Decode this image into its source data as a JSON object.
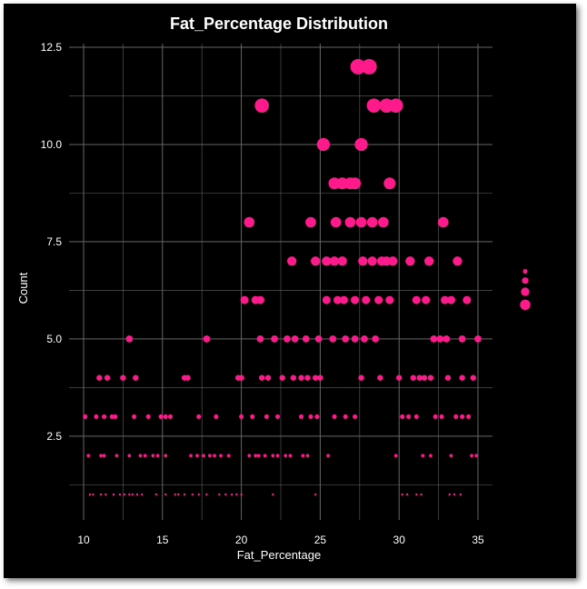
{
  "chart_data": {
    "type": "scatter",
    "title": "Fat_Percentage Distribution",
    "xlabel": "Fat_Percentage",
    "ylabel": "Count",
    "xlim": [
      10,
      35
    ],
    "ylim": [
      1.0,
      12.5
    ],
    "xticks": [
      10,
      15,
      20,
      25,
      30,
      35
    ],
    "xtick_labels": [
      "10",
      "15",
      "20",
      "25",
      "30",
      "35"
    ],
    "yticks": [
      2.5,
      5.0,
      7.5,
      10.0,
      12.5
    ],
    "ytick_labels": [
      "2.5",
      "5.0",
      "7.5",
      "10.0",
      "12.5"
    ],
    "grid": true,
    "legend": "size legend right, unlabeled",
    "colors": {
      "background": "#000000",
      "marker": "#ff1a8c",
      "grid": "#666666",
      "text": "#ffffff"
    },
    "points": [
      {
        "x": 11.0,
        "y": 4
      },
      {
        "x": 11.5,
        "y": 4
      },
      {
        "x": 12.5,
        "y": 4
      },
      {
        "x": 13.3,
        "y": 4
      },
      {
        "x": 16.4,
        "y": 4
      },
      {
        "x": 16.6,
        "y": 4
      },
      {
        "x": 19.8,
        "y": 4
      },
      {
        "x": 20.0,
        "y": 4
      },
      {
        "x": 21.3,
        "y": 4
      },
      {
        "x": 21.7,
        "y": 4
      },
      {
        "x": 22.6,
        "y": 4
      },
      {
        "x": 23.3,
        "y": 4
      },
      {
        "x": 23.8,
        "y": 4
      },
      {
        "x": 24.2,
        "y": 4
      },
      {
        "x": 24.7,
        "y": 4
      },
      {
        "x": 25.0,
        "y": 4
      },
      {
        "x": 27.6,
        "y": 4
      },
      {
        "x": 28.8,
        "y": 4
      },
      {
        "x": 30.0,
        "y": 4
      },
      {
        "x": 30.9,
        "y": 4
      },
      {
        "x": 31.3,
        "y": 4
      },
      {
        "x": 31.6,
        "y": 4
      },
      {
        "x": 32.0,
        "y": 4
      },
      {
        "x": 33.1,
        "y": 4
      },
      {
        "x": 34.0,
        "y": 4
      },
      {
        "x": 34.7,
        "y": 4
      },
      {
        "x": 12.9,
        "y": 5
      },
      {
        "x": 17.8,
        "y": 5
      },
      {
        "x": 21.2,
        "y": 5
      },
      {
        "x": 22.1,
        "y": 5
      },
      {
        "x": 22.9,
        "y": 5
      },
      {
        "x": 23.4,
        "y": 5
      },
      {
        "x": 24.1,
        "y": 5
      },
      {
        "x": 24.9,
        "y": 5
      },
      {
        "x": 25.8,
        "y": 5
      },
      {
        "x": 26.6,
        "y": 5
      },
      {
        "x": 27.2,
        "y": 5
      },
      {
        "x": 27.8,
        "y": 5
      },
      {
        "x": 28.5,
        "y": 5
      },
      {
        "x": 32.2,
        "y": 5
      },
      {
        "x": 32.6,
        "y": 5
      },
      {
        "x": 33.0,
        "y": 5
      },
      {
        "x": 34.0,
        "y": 5
      },
      {
        "x": 35.0,
        "y": 5
      },
      {
        "x": 20.2,
        "y": 6
      },
      {
        "x": 20.9,
        "y": 6
      },
      {
        "x": 21.2,
        "y": 6
      },
      {
        "x": 25.4,
        "y": 6
      },
      {
        "x": 26.1,
        "y": 6
      },
      {
        "x": 26.5,
        "y": 6
      },
      {
        "x": 27.2,
        "y": 6
      },
      {
        "x": 27.9,
        "y": 6
      },
      {
        "x": 28.7,
        "y": 6
      },
      {
        "x": 29.4,
        "y": 6
      },
      {
        "x": 31.1,
        "y": 6
      },
      {
        "x": 31.7,
        "y": 6
      },
      {
        "x": 32.9,
        "y": 6
      },
      {
        "x": 33.3,
        "y": 6
      },
      {
        "x": 34.3,
        "y": 6
      },
      {
        "x": 23.2,
        "y": 7
      },
      {
        "x": 24.7,
        "y": 7
      },
      {
        "x": 25.4,
        "y": 7
      },
      {
        "x": 25.9,
        "y": 7
      },
      {
        "x": 26.4,
        "y": 7
      },
      {
        "x": 27.7,
        "y": 7
      },
      {
        "x": 28.3,
        "y": 7
      },
      {
        "x": 28.9,
        "y": 7
      },
      {
        "x": 29.2,
        "y": 7
      },
      {
        "x": 29.6,
        "y": 7
      },
      {
        "x": 30.7,
        "y": 7
      },
      {
        "x": 31.9,
        "y": 7
      },
      {
        "x": 33.7,
        "y": 7
      },
      {
        "x": 20.5,
        "y": 8
      },
      {
        "x": 24.4,
        "y": 8
      },
      {
        "x": 26.0,
        "y": 8
      },
      {
        "x": 26.9,
        "y": 8
      },
      {
        "x": 27.6,
        "y": 8
      },
      {
        "x": 28.3,
        "y": 8
      },
      {
        "x": 29.0,
        "y": 8
      },
      {
        "x": 32.8,
        "y": 8
      },
      {
        "x": 25.9,
        "y": 9
      },
      {
        "x": 26.4,
        "y": 9
      },
      {
        "x": 26.9,
        "y": 9
      },
      {
        "x": 27.2,
        "y": 9
      },
      {
        "x": 29.4,
        "y": 9
      },
      {
        "x": 25.2,
        "y": 10
      },
      {
        "x": 27.6,
        "y": 10
      },
      {
        "x": 21.3,
        "y": 11
      },
      {
        "x": 28.4,
        "y": 11
      },
      {
        "x": 29.2,
        "y": 11
      },
      {
        "x": 29.8,
        "y": 11
      },
      {
        "x": 27.4,
        "y": 12
      },
      {
        "x": 28.1,
        "y": 12
      },
      {
        "x": 10.1,
        "y": 3
      },
      {
        "x": 10.8,
        "y": 3
      },
      {
        "x": 11.3,
        "y": 3
      },
      {
        "x": 11.8,
        "y": 3
      },
      {
        "x": 12.0,
        "y": 3
      },
      {
        "x": 13.2,
        "y": 3
      },
      {
        "x": 14.1,
        "y": 3
      },
      {
        "x": 14.9,
        "y": 3
      },
      {
        "x": 15.2,
        "y": 3
      },
      {
        "x": 15.5,
        "y": 3
      },
      {
        "x": 17.3,
        "y": 3
      },
      {
        "x": 18.4,
        "y": 3
      },
      {
        "x": 20.0,
        "y": 3
      },
      {
        "x": 20.7,
        "y": 3
      },
      {
        "x": 21.6,
        "y": 3
      },
      {
        "x": 22.3,
        "y": 3
      },
      {
        "x": 23.8,
        "y": 3
      },
      {
        "x": 24.4,
        "y": 3
      },
      {
        "x": 24.8,
        "y": 3
      },
      {
        "x": 25.9,
        "y": 3
      },
      {
        "x": 26.6,
        "y": 3
      },
      {
        "x": 27.2,
        "y": 3
      },
      {
        "x": 30.2,
        "y": 3
      },
      {
        "x": 30.6,
        "y": 3
      },
      {
        "x": 31.1,
        "y": 3
      },
      {
        "x": 32.3,
        "y": 3
      },
      {
        "x": 32.7,
        "y": 3
      },
      {
        "x": 33.6,
        "y": 3
      },
      {
        "x": 34.0,
        "y": 3
      },
      {
        "x": 34.4,
        "y": 3
      },
      {
        "x": 10.3,
        "y": 2
      },
      {
        "x": 11.1,
        "y": 2
      },
      {
        "x": 11.3,
        "y": 2
      },
      {
        "x": 12.1,
        "y": 2
      },
      {
        "x": 12.9,
        "y": 2
      },
      {
        "x": 13.6,
        "y": 2
      },
      {
        "x": 13.9,
        "y": 2
      },
      {
        "x": 14.4,
        "y": 2
      },
      {
        "x": 14.7,
        "y": 2
      },
      {
        "x": 15.2,
        "y": 2
      },
      {
        "x": 16.8,
        "y": 2
      },
      {
        "x": 17.2,
        "y": 2
      },
      {
        "x": 17.6,
        "y": 2
      },
      {
        "x": 18.0,
        "y": 2
      },
      {
        "x": 18.3,
        "y": 2
      },
      {
        "x": 18.7,
        "y": 2
      },
      {
        "x": 19.2,
        "y": 2
      },
      {
        "x": 20.5,
        "y": 2
      },
      {
        "x": 20.9,
        "y": 2
      },
      {
        "x": 21.1,
        "y": 2
      },
      {
        "x": 21.5,
        "y": 2
      },
      {
        "x": 22.0,
        "y": 2
      },
      {
        "x": 22.3,
        "y": 2
      },
      {
        "x": 22.8,
        "y": 2
      },
      {
        "x": 23.1,
        "y": 2
      },
      {
        "x": 23.9,
        "y": 2
      },
      {
        "x": 24.2,
        "y": 2
      },
      {
        "x": 25.5,
        "y": 2
      },
      {
        "x": 29.8,
        "y": 2
      },
      {
        "x": 31.5,
        "y": 2
      },
      {
        "x": 32.0,
        "y": 2
      },
      {
        "x": 33.3,
        "y": 2
      },
      {
        "x": 34.6,
        "y": 2
      },
      {
        "x": 34.9,
        "y": 2
      },
      {
        "x": 10.4,
        "y": 1
      },
      {
        "x": 10.6,
        "y": 1
      },
      {
        "x": 11.1,
        "y": 1
      },
      {
        "x": 11.4,
        "y": 1
      },
      {
        "x": 11.9,
        "y": 1
      },
      {
        "x": 12.3,
        "y": 1
      },
      {
        "x": 12.6,
        "y": 1
      },
      {
        "x": 12.9,
        "y": 1
      },
      {
        "x": 13.1,
        "y": 1
      },
      {
        "x": 13.4,
        "y": 1
      },
      {
        "x": 13.7,
        "y": 1
      },
      {
        "x": 14.6,
        "y": 1
      },
      {
        "x": 15.2,
        "y": 1
      },
      {
        "x": 15.8,
        "y": 1
      },
      {
        "x": 16.0,
        "y": 1
      },
      {
        "x": 16.4,
        "y": 1
      },
      {
        "x": 16.9,
        "y": 1
      },
      {
        "x": 17.3,
        "y": 1
      },
      {
        "x": 17.8,
        "y": 1
      },
      {
        "x": 18.6,
        "y": 1
      },
      {
        "x": 19.0,
        "y": 1
      },
      {
        "x": 19.4,
        "y": 1
      },
      {
        "x": 19.7,
        "y": 1
      },
      {
        "x": 20.0,
        "y": 1
      },
      {
        "x": 22.0,
        "y": 1
      },
      {
        "x": 24.7,
        "y": 1
      },
      {
        "x": 30.2,
        "y": 1
      },
      {
        "x": 30.5,
        "y": 1
      },
      {
        "x": 31.1,
        "y": 1
      },
      {
        "x": 31.4,
        "y": 1
      },
      {
        "x": 33.2,
        "y": 1
      },
      {
        "x": 33.5,
        "y": 1
      },
      {
        "x": 33.9,
        "y": 1
      }
    ],
    "size_legend": [
      4,
      6,
      8,
      10
    ]
  }
}
